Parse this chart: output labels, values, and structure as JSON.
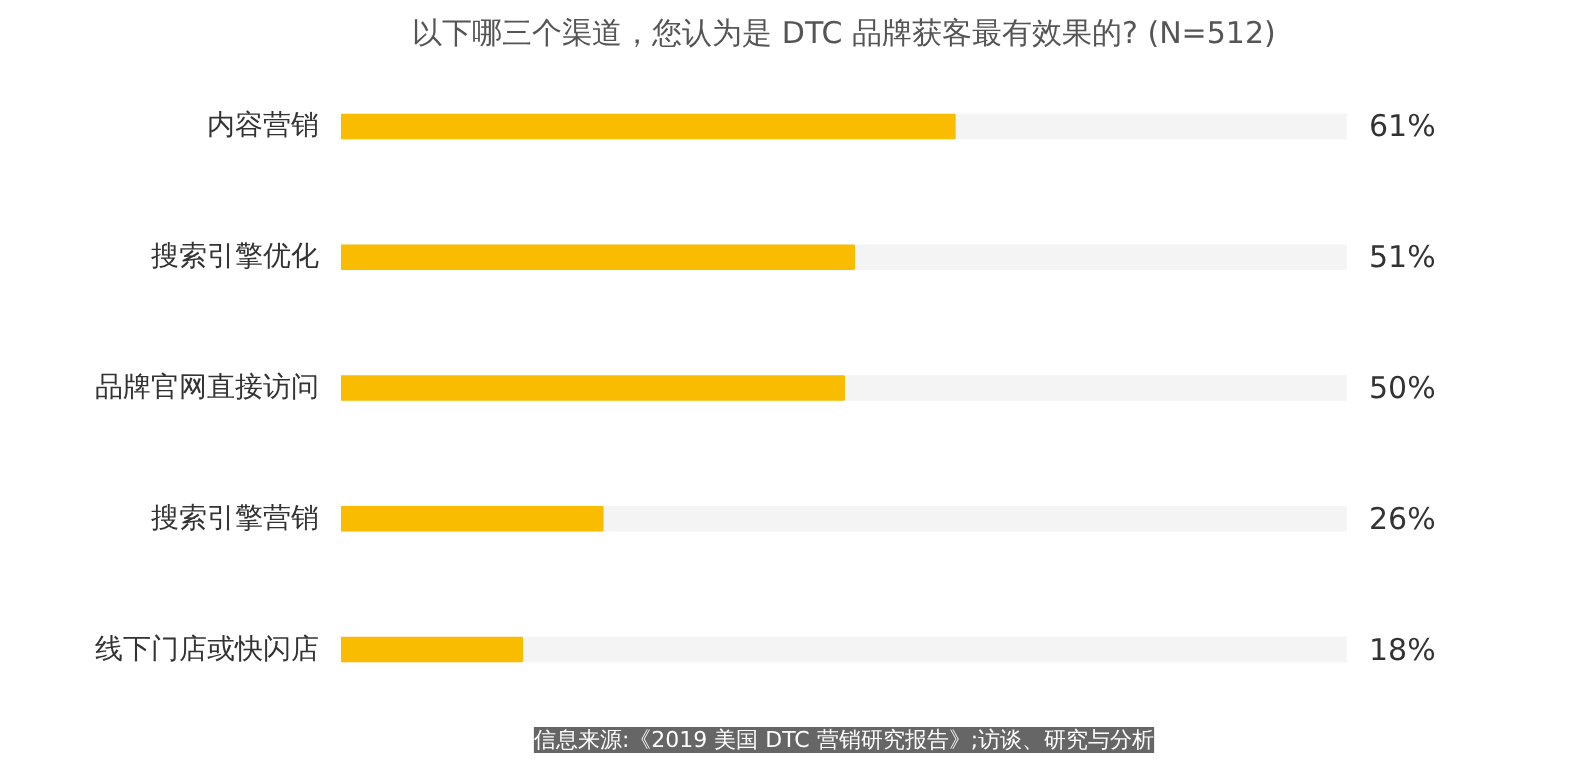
{
  "chart_data": {
    "type": "bar",
    "orientation": "horizontal",
    "title": "以下哪三个渠道，您认为是 DTC 品牌获客最有效果的? (N=512)",
    "categories": [
      "内容营销",
      "搜索引擎优化",
      "品牌官网直接访问",
      "搜索引擎营销",
      "线下门店或快闪店"
    ],
    "values": [
      61,
      51,
      50,
      26,
      18
    ],
    "value_labels": [
      "61%",
      "51%",
      "50%",
      "26%",
      "18%"
    ],
    "color": "#f9bc00",
    "xlim": [
      0,
      100
    ],
    "tick_labels": "y",
    "grid": false,
    "annotations": [
      "信息来源:《2019 美国 DTC 营销研究报告》;访谈、研究与分析"
    ]
  }
}
